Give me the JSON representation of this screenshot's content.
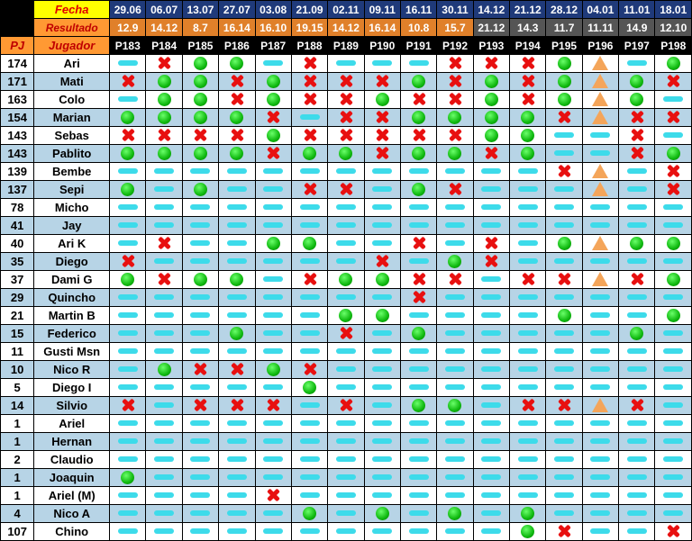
{
  "header": {
    "fecha_label": "Fecha",
    "resultado_label": "Resultado",
    "pj_label": "PJ",
    "jugador_label": "Jugador"
  },
  "columns": [
    {
      "date": "29.06",
      "result": "12.9",
      "code": "P183"
    },
    {
      "date": "06.07",
      "result": "14.12",
      "code": "P184"
    },
    {
      "date": "13.07",
      "result": "8.7",
      "code": "P185"
    },
    {
      "date": "27.07",
      "result": "16.14",
      "code": "P186"
    },
    {
      "date": "03.08",
      "result": "16.10",
      "code": "P187"
    },
    {
      "date": "21.09",
      "result": "19.15",
      "code": "P188"
    },
    {
      "date": "02.11",
      "result": "14.12",
      "code": "P189"
    },
    {
      "date": "09.11",
      "result": "16.14",
      "code": "P190"
    },
    {
      "date": "16.11",
      "result": "10.8",
      "code": "P191"
    },
    {
      "date": "30.11",
      "result": "15.7",
      "code": "P192"
    },
    {
      "date": "14.12",
      "result": "21.12",
      "code": "P193"
    },
    {
      "date": "21.12",
      "result": "14.3",
      "code": "P194"
    },
    {
      "date": "28.12",
      "result": "11.7",
      "code": "P195"
    },
    {
      "date": "04.01",
      "result": "11.11",
      "code": "P196"
    },
    {
      "date": "11.01",
      "result": "14.9",
      "code": "P197"
    },
    {
      "date": "18.01",
      "result": "12.10",
      "code": "P198"
    }
  ],
  "legend_icons": {
    "W": "green-circle-icon",
    "L": "red-x-icon",
    "N": "cyan-dash-icon",
    "D": "orange-triangle-icon"
  },
  "colors": {
    "date_header": "#1f3a7a",
    "result_header": "#e0802a",
    "label_header": "#ffff00",
    "win": "#0fb80f",
    "loss": "#e81010",
    "absent": "#3ddbea",
    "draw": "#f4a55a",
    "alt_row": "#b7d4e6"
  },
  "players": [
    {
      "pj": "174",
      "name": "Ari",
      "marks": "NLWWNLNNNLLLWDNW"
    },
    {
      "pj": "171",
      "name": "Mati",
      "marks": "LWWLWLLLWLWLWDWL"
    },
    {
      "pj": "163",
      "name": "Colo",
      "marks": "NWWLWLLWLLWLWDWN"
    },
    {
      "pj": "154",
      "name": "Marian",
      "marks": "WWWWLNLLWWWWLDLL"
    },
    {
      "pj": "143",
      "name": "Sebas",
      "marks": "LLLLWLLLLLWWNNLN"
    },
    {
      "pj": "143",
      "name": "Pablito",
      "marks": "WWWWLWWLWWLWNNLW"
    },
    {
      "pj": "139",
      "name": "Bembe",
      "marks": "NNNNNNNNNNNNLDNL"
    },
    {
      "pj": "137",
      "name": "Sepi",
      "marks": "WNWNNLLNWLNNNDNL"
    },
    {
      "pj": "78",
      "name": "Micho",
      "marks": "NNNNNNNNNNNNNNNN"
    },
    {
      "pj": "41",
      "name": "Jay",
      "marks": "NNNNNNNNNNNNNNNN"
    },
    {
      "pj": "40",
      "name": "Ari K",
      "marks": "NLNNWWNNLNLNWDWW"
    },
    {
      "pj": "35",
      "name": "Diego",
      "marks": "LNNNNNNLNWLNNNNN"
    },
    {
      "pj": "37",
      "name": "Dami G",
      "marks": "WLWWNLWWLLNLLDLW"
    },
    {
      "pj": "29",
      "name": "Quincho",
      "marks": "NNNNNNNNLNNNNNNN"
    },
    {
      "pj": "21",
      "name": "Martin B",
      "marks": "NNNNNNWWNNNNWNNW"
    },
    {
      "pj": "15",
      "name": "Federico",
      "marks": "NNNWNNLNWNNNNNWN"
    },
    {
      "pj": "11",
      "name": "Gusti Msn",
      "marks": "NNNNNNNNNNNNNNNN"
    },
    {
      "pj": "10",
      "name": "Nico R",
      "marks": "NWLLWLNNNNNNNNNN"
    },
    {
      "pj": "5",
      "name": "Diego I",
      "marks": "NNNNNWNNNNNNNNNN"
    },
    {
      "pj": "14",
      "name": "Silvio",
      "marks": "LNLLLNLNWWNLLDLN"
    },
    {
      "pj": "1",
      "name": "Ariel",
      "marks": "NNNNNNNNNNNNNNNN"
    },
    {
      "pj": "1",
      "name": "Hernan",
      "marks": "NNNNNNNNNNNNNNNN"
    },
    {
      "pj": "2",
      "name": "Claudio",
      "marks": "NNNNNNNNNNNNNNNN"
    },
    {
      "pj": "1",
      "name": "Joaquin",
      "marks": "WNNNNNNNNNNNNNNN"
    },
    {
      "pj": "1",
      "name": "Ariel (M)",
      "marks": "NNNNLNNNNNNNNNNN"
    },
    {
      "pj": "4",
      "name": "Nico A",
      "marks": "NNNNNWNWNWNWNNNN"
    },
    {
      "pj": "107",
      "name": "Chino",
      "marks": "NNNNNNNNNNNWLNNL"
    }
  ]
}
